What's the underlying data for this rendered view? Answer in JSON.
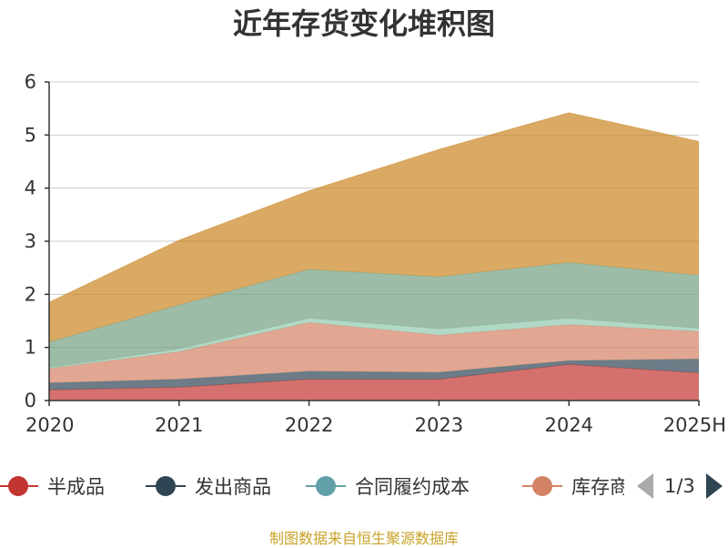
{
  "chart_data": {
    "type": "area",
    "stacked": true,
    "title": "近年存货变化堆积图",
    "ylabel": "",
    "xlabel": "",
    "ylim": [
      0,
      6
    ],
    "y_ticks": [
      "0",
      "1",
      "2",
      "3",
      "4",
      "5",
      "6"
    ],
    "categories": [
      "2020",
      "2021",
      "2022",
      "2023",
      "2024",
      "2025H"
    ],
    "series": [
      {
        "name": "半成品",
        "color": "#c23531",
        "values": [
          0.2,
          0.25,
          0.4,
          0.4,
          0.68,
          0.52
        ]
      },
      {
        "name": "发出商品",
        "color": "#2f4554",
        "values": [
          0.13,
          0.15,
          0.15,
          0.13,
          0.07,
          0.26
        ]
      },
      {
        "name": "合同履约成本",
        "color": "#61a0a8",
        "values": [
          0.0,
          0.0,
          0.0,
          0.0,
          0.0,
          0.0
        ]
      },
      {
        "name": "库存商品",
        "color": "#d48265",
        "values": [
          0.27,
          0.52,
          0.92,
          0.7,
          0.68,
          0.52
        ]
      },
      {
        "name": "",
        "color": "#91c7ae",
        "values": [
          0.02,
          0.05,
          0.08,
          0.12,
          0.12,
          0.06
        ]
      },
      {
        "name": "",
        "color": "#749f83",
        "values": [
          0.48,
          0.83,
          0.92,
          0.98,
          1.05,
          1.0
        ]
      },
      {
        "name": "",
        "color": "#ca8622",
        "values": [
          0.75,
          1.22,
          1.48,
          2.4,
          2.82,
          2.52
        ]
      }
    ],
    "grid": true,
    "legend_position": "bottom"
  },
  "legend": {
    "items": [
      "半成品",
      "发出商品",
      "合同履约成本",
      "库存商品"
    ],
    "page_label": "1/3"
  },
  "footer": {
    "source": "制图数据来自恒生聚源数据库"
  }
}
